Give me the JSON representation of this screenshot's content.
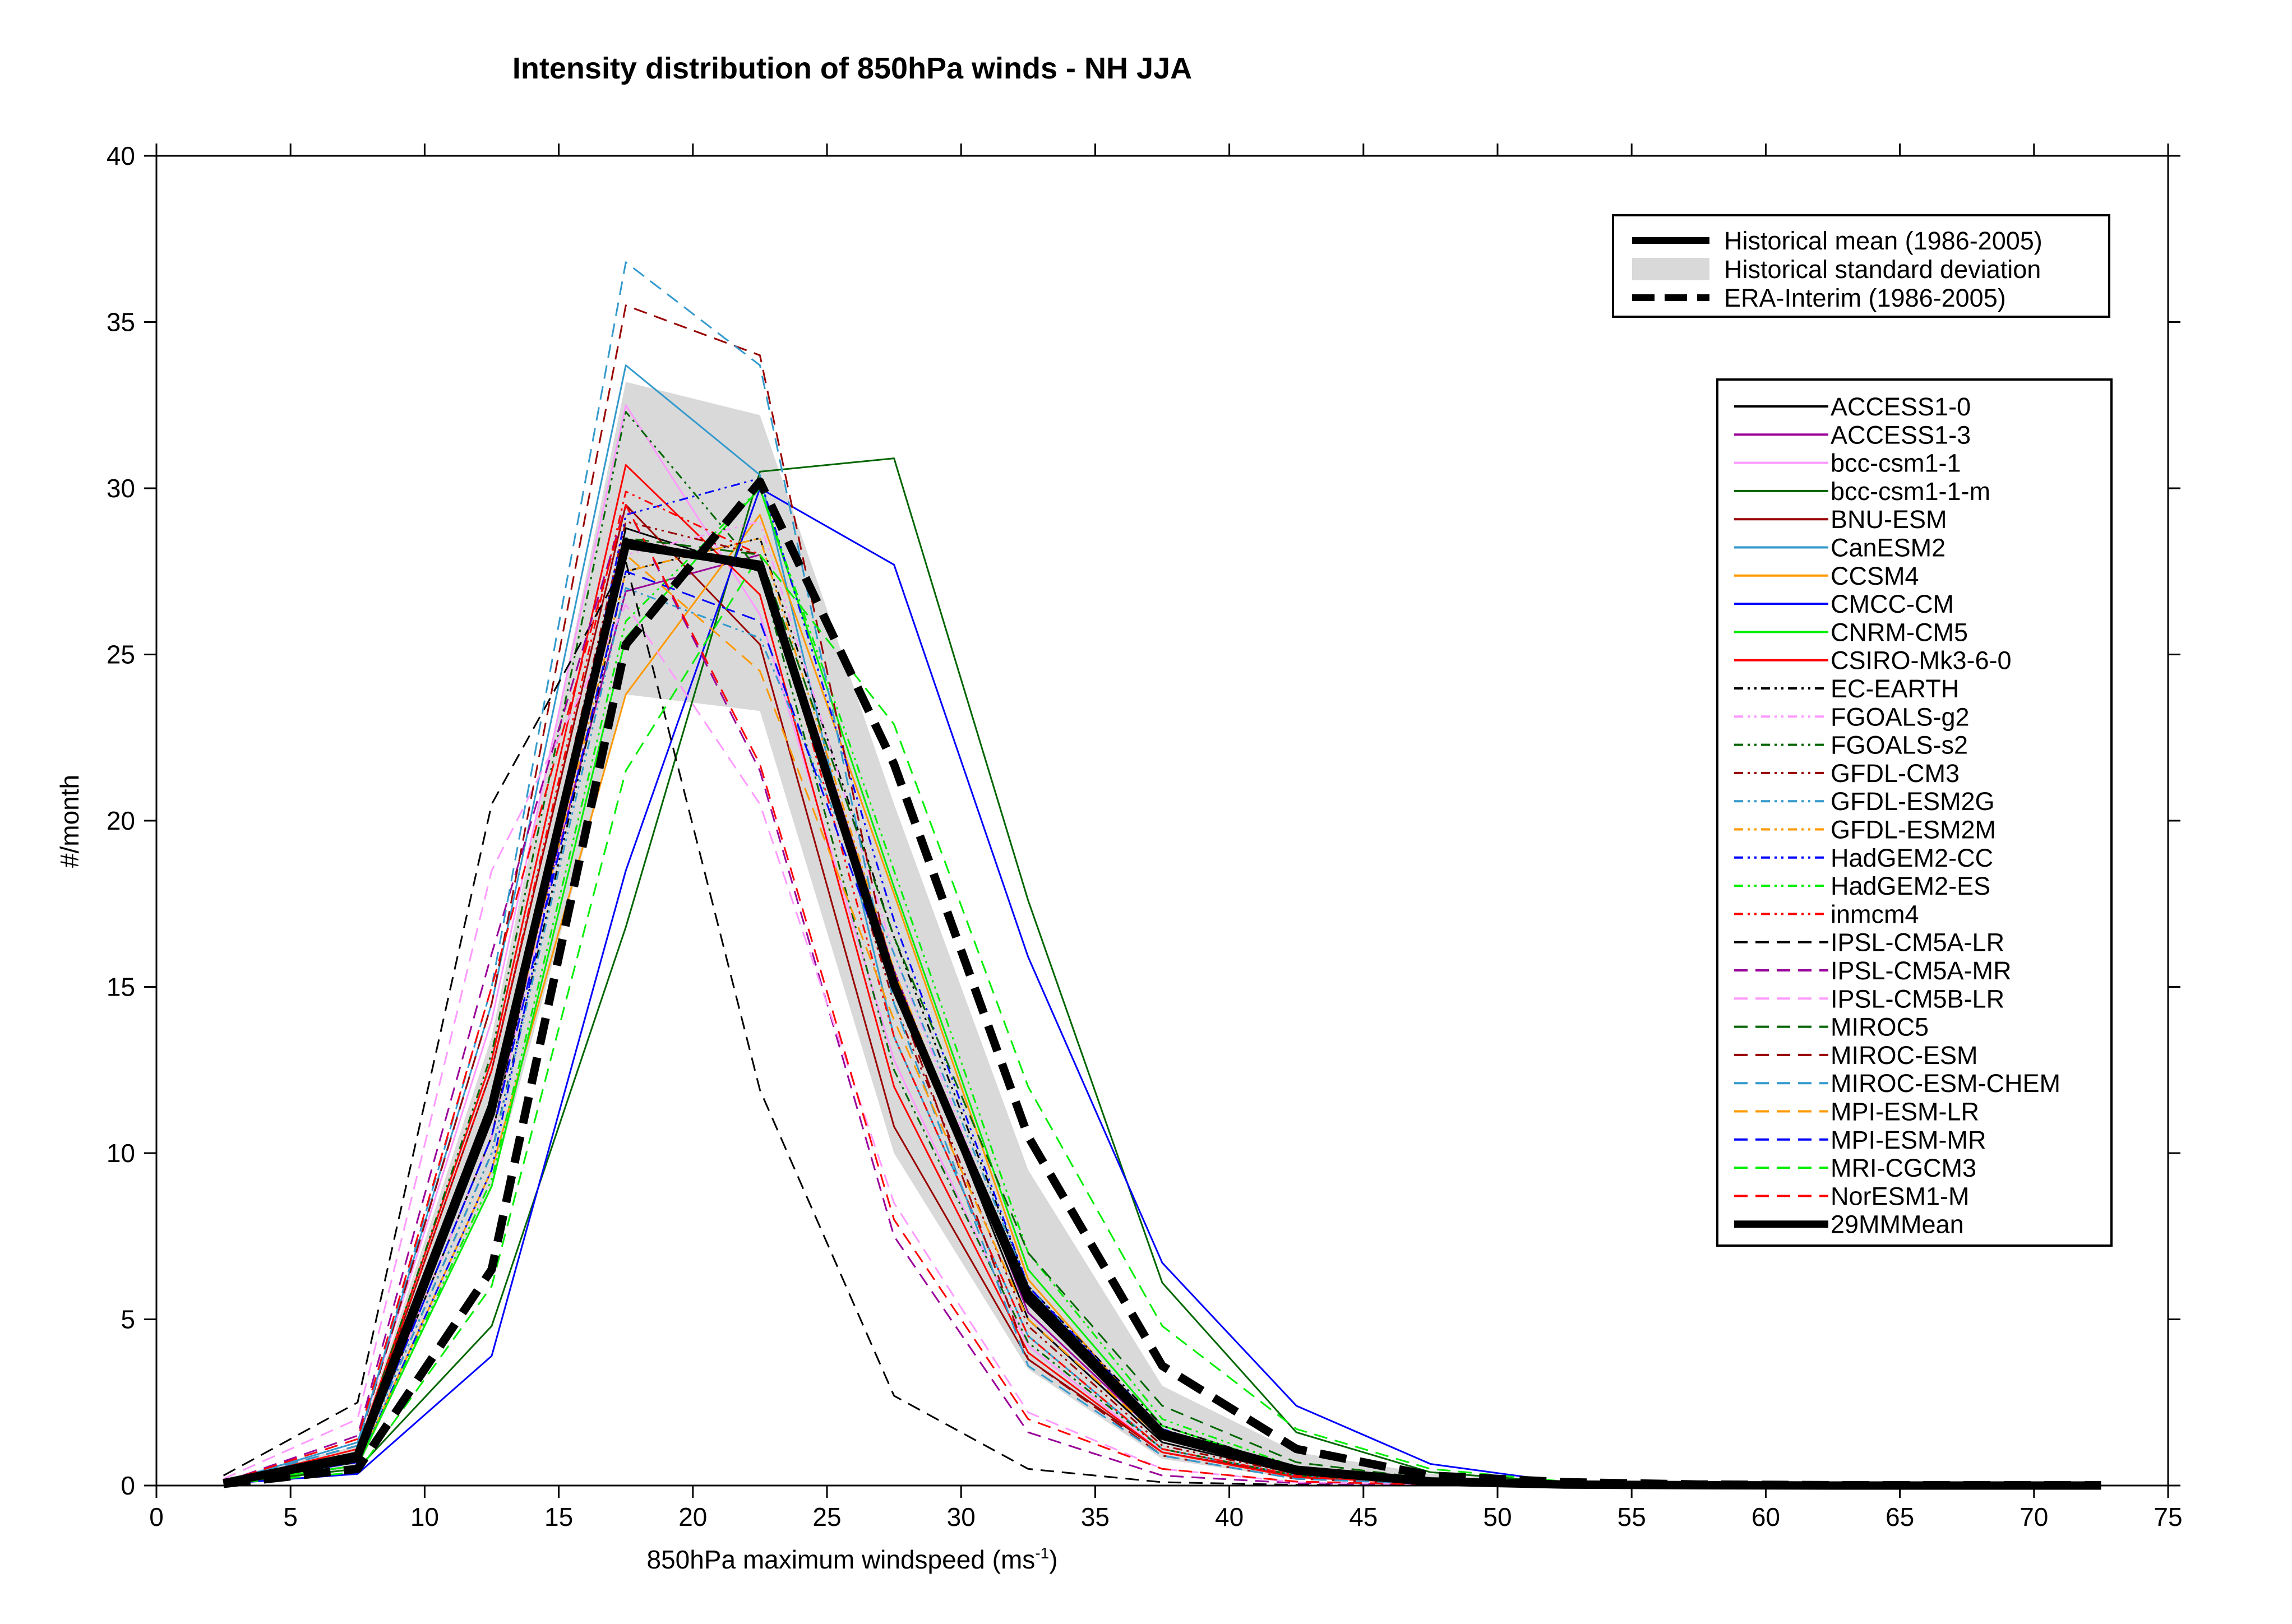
{
  "chart_data": {
    "type": "line",
    "title": "Intensity distribution of 850hPa winds - NH JJA",
    "xlabel_main": "850hPa maximum windspeed (ms",
    "xlabel_sup": "-1",
    "xlabel_end": ")",
    "ylabel": "#/month",
    "xlim": [
      0,
      75
    ],
    "ylim": [
      0,
      40
    ],
    "xticks": [
      0,
      5,
      10,
      15,
      20,
      25,
      30,
      35,
      40,
      45,
      50,
      55,
      60,
      65,
      70,
      75
    ],
    "yticks": [
      0,
      5,
      10,
      15,
      20,
      25,
      30,
      35,
      40
    ],
    "grid": false,
    "x": [
      2.5,
      7.5,
      12.5,
      17.5,
      22.5,
      27.5,
      32.5,
      37.5,
      42.5,
      47.5,
      52.5,
      57.5,
      62.5,
      67.5,
      72.5
    ],
    "reference": {
      "legend_placement": "top-right",
      "historical_mean": {
        "name": "Historical mean (1986-2005)",
        "color": "#000000",
        "values": [
          0.1,
          0.8,
          11.2,
          28.4,
          27.6,
          15.0,
          5.8,
          1.6,
          0.5,
          0.15,
          0.05,
          0.02,
          0.01,
          0.01,
          0.01
        ]
      },
      "historical_std": {
        "name": "Historical standard deviation",
        "color": "#d9d9d9",
        "lower": [
          0.05,
          0.5,
          9.0,
          23.8,
          23.3,
          10.0,
          3.5,
          0.8,
          0.2,
          0.05,
          0.02,
          0.01,
          0.01,
          0.01,
          0.01
        ],
        "upper": [
          0.2,
          1.2,
          13.5,
          33.2,
          32.2,
          20.5,
          9.5,
          3.0,
          1.0,
          0.35,
          0.1,
          0.04,
          0.02,
          0.02,
          0.02
        ]
      },
      "era_interim": {
        "name": "ERA-Interim (1986-2005)",
        "color": "#000000",
        "values": [
          0.05,
          0.5,
          6.5,
          25.3,
          30.2,
          21.7,
          10.5,
          3.6,
          1.1,
          0.3,
          0.1,
          0.03,
          0.01,
          0.01,
          0.01
        ]
      }
    },
    "models_legend_placement": "right",
    "series": [
      {
        "name": "ACCESS1-0",
        "color": "#000000",
        "dash": "solid",
        "values": [
          0.05,
          0.7,
          10.5,
          28.8,
          27.5,
          15.2,
          5.0,
          1.3,
          0.35,
          0.1,
          0.03,
          0.01,
          0.0,
          0.0,
          0.0
        ]
      },
      {
        "name": "ACCESS1-3",
        "color": "#990099",
        "dash": "solid",
        "values": [
          0.05,
          0.8,
          11.5,
          26.9,
          28.0,
          15.5,
          5.2,
          1.4,
          0.4,
          0.1,
          0.03,
          0.01,
          0.0,
          0.0,
          0.0
        ]
      },
      {
        "name": "bcc-csm1-1",
        "color": "#ff99ff",
        "dash": "solid",
        "values": [
          0.1,
          1.3,
          14.0,
          32.5,
          26.2,
          12.8,
          4.2,
          1.0,
          0.3,
          0.08,
          0.02,
          0.01,
          0.0,
          0.0,
          0.0
        ]
      },
      {
        "name": "bcc-csm1-1-m",
        "color": "#006600",
        "dash": "solid",
        "values": [
          0.05,
          0.5,
          4.8,
          16.8,
          30.5,
          30.9,
          17.6,
          6.1,
          1.6,
          0.4,
          0.1,
          0.03,
          0.01,
          0.0,
          0.0
        ]
      },
      {
        "name": "BNU-ESM",
        "color": "#990000",
        "dash": "solid",
        "values": [
          0.1,
          1.0,
          12.5,
          29.5,
          25.3,
          10.8,
          3.8,
          1.0,
          0.3,
          0.08,
          0.02,
          0.01,
          0.0,
          0.0,
          0.0
        ]
      },
      {
        "name": "CanESM2",
        "color": "#3399cc",
        "dash": "solid",
        "values": [
          0.1,
          1.3,
          14.5,
          33.7,
          30.4,
          13.5,
          4.5,
          1.1,
          0.3,
          0.08,
          0.02,
          0.01,
          0.0,
          0.0,
          0.0
        ]
      },
      {
        "name": "CCSM4",
        "color": "#ff9900",
        "dash": "solid",
        "values": [
          0.05,
          0.6,
          9.5,
          23.8,
          29.2,
          17.8,
          6.2,
          1.6,
          0.4,
          0.1,
          0.03,
          0.01,
          0.0,
          0.0,
          0.0
        ]
      },
      {
        "name": "CMCC-CM",
        "color": "#0000ff",
        "dash": "solid",
        "values": [
          0.05,
          0.35,
          3.9,
          18.5,
          30.0,
          27.7,
          15.9,
          6.7,
          2.4,
          0.65,
          0.1,
          0.03,
          0.01,
          0.0,
          0.0
        ]
      },
      {
        "name": "CNRM-CM5",
        "color": "#00ee00",
        "dash": "solid",
        "values": [
          0.05,
          0.6,
          9.0,
          25.5,
          30.0,
          18.0,
          6.5,
          1.8,
          0.5,
          0.12,
          0.03,
          0.01,
          0.0,
          0.0,
          0.0
        ]
      },
      {
        "name": "CSIRO-Mk3-6-0",
        "color": "#ff0000",
        "dash": "solid",
        "values": [
          0.1,
          1.1,
          12.8,
          30.7,
          26.8,
          12.0,
          4.0,
          1.0,
          0.25,
          0.07,
          0.02,
          0.01,
          0.0,
          0.0,
          0.0
        ]
      },
      {
        "name": "EC-EARTH",
        "color": "#000000",
        "dash": "dashdotdot",
        "values": [
          0.05,
          0.7,
          10.0,
          27.5,
          28.5,
          16.5,
          6.0,
          1.8,
          0.5,
          0.12,
          0.03,
          0.01,
          0.0,
          0.0,
          0.0
        ]
      },
      {
        "name": "FGOALS-g2",
        "color": "#ff99ff",
        "dash": "dashdotdot",
        "values": [
          0.05,
          0.7,
          10.5,
          28.0,
          29.0,
          16.0,
          5.5,
          1.5,
          0.4,
          0.1,
          0.03,
          0.01,
          0.0,
          0.0,
          0.0
        ]
      },
      {
        "name": "FGOALS-s2",
        "color": "#006600",
        "dash": "dashdotdot",
        "values": [
          0.1,
          1.0,
          13.0,
          32.3,
          27.5,
          12.5,
          4.3,
          1.1,
          0.3,
          0.08,
          0.02,
          0.01,
          0.0,
          0.0,
          0.0
        ]
      },
      {
        "name": "GFDL-CM3",
        "color": "#990000",
        "dash": "dashdotdot",
        "values": [
          0.05,
          0.8,
          11.5,
          29.0,
          28.0,
          14.5,
          4.8,
          1.2,
          0.35,
          0.1,
          0.03,
          0.01,
          0.0,
          0.0,
          0.0
        ]
      },
      {
        "name": "GFDL-ESM2G",
        "color": "#3399cc",
        "dash": "dashdotdot",
        "values": [
          0.05,
          0.7,
          10.0,
          27.0,
          25.5,
          16.0,
          6.0,
          1.6,
          0.45,
          0.12,
          0.03,
          0.01,
          0.0,
          0.0,
          0.0
        ]
      },
      {
        "name": "GFDL-ESM2M",
        "color": "#ff9900",
        "dash": "dashdotdot",
        "values": [
          0.05,
          0.8,
          11.0,
          27.5,
          28.5,
          15.5,
          5.5,
          1.5,
          0.4,
          0.1,
          0.03,
          0.01,
          0.0,
          0.0,
          0.0
        ]
      },
      {
        "name": "HadGEM2-CC",
        "color": "#0000ff",
        "dash": "dashdotdot",
        "values": [
          0.05,
          0.6,
          9.5,
          29.2,
          30.3,
          17.0,
          6.0,
          1.7,
          0.45,
          0.12,
          0.03,
          0.01,
          0.0,
          0.0,
          0.0
        ]
      },
      {
        "name": "HadGEM2-ES",
        "color": "#00ee00",
        "dash": "dashdotdot",
        "values": [
          0.05,
          0.6,
          9.2,
          26.0,
          30.0,
          18.5,
          7.0,
          2.0,
          0.55,
          0.14,
          0.04,
          0.01,
          0.0,
          0.0,
          0.0
        ]
      },
      {
        "name": "inmcm4",
        "color": "#ff0000",
        "dash": "dashdotdot",
        "values": [
          0.1,
          1.0,
          12.5,
          29.9,
          28.0,
          13.5,
          4.5,
          1.1,
          0.3,
          0.08,
          0.02,
          0.01,
          0.0,
          0.0,
          0.0
        ]
      },
      {
        "name": "IPSL-CM5A-LR",
        "color": "#000000",
        "dash": "dashed",
        "values": [
          0.3,
          2.5,
          20.5,
          27.8,
          11.9,
          2.7,
          0.5,
          0.1,
          0.02,
          0.01,
          0.0,
          0.0,
          0.0,
          0.0,
          0.0
        ]
      },
      {
        "name": "IPSL-CM5A-MR",
        "color": "#990099",
        "dash": "dashed",
        "values": [
          0.1,
          1.5,
          16.0,
          29.5,
          21.5,
          7.5,
          1.6,
          0.3,
          0.07,
          0.02,
          0.0,
          0.0,
          0.0,
          0.0,
          0.0
        ]
      },
      {
        "name": "IPSL-CM5B-LR",
        "color": "#ff99ff",
        "dash": "dashed",
        "values": [
          0.2,
          2.0,
          18.5,
          26.5,
          20.5,
          8.5,
          2.2,
          0.5,
          0.1,
          0.03,
          0.01,
          0.0,
          0.0,
          0.0,
          0.0
        ]
      },
      {
        "name": "MIROC5",
        "color": "#006600",
        "dash": "dashed",
        "values": [
          0.05,
          0.8,
          11.0,
          28.5,
          28.0,
          16.5,
          7.0,
          2.4,
          0.7,
          0.2,
          0.05,
          0.01,
          0.0,
          0.0,
          0.0
        ]
      },
      {
        "name": "MIROC-ESM",
        "color": "#990000",
        "dash": "dashed",
        "values": [
          0.1,
          1.2,
          14.5,
          35.5,
          34.0,
          15.0,
          3.8,
          0.9,
          0.2,
          0.05,
          0.01,
          0.0,
          0.0,
          0.0,
          0.0
        ]
      },
      {
        "name": "MIROC-ESM-CHEM",
        "color": "#3399cc",
        "dash": "dashed",
        "values": [
          0.1,
          1.2,
          15.0,
          36.8,
          33.7,
          14.5,
          3.6,
          0.9,
          0.2,
          0.05,
          0.01,
          0.0,
          0.0,
          0.0,
          0.0
        ]
      },
      {
        "name": "MPI-ESM-LR",
        "color": "#ff9900",
        "dash": "dashed",
        "values": [
          0.05,
          0.8,
          11.0,
          28.0,
          24.5,
          14.0,
          5.0,
          1.4,
          0.4,
          0.1,
          0.03,
          0.01,
          0.0,
          0.0,
          0.0
        ]
      },
      {
        "name": "MPI-ESM-MR",
        "color": "#0000ff",
        "dash": "dashed",
        "values": [
          0.05,
          0.7,
          10.5,
          27.5,
          26.0,
          15.0,
          5.5,
          1.6,
          0.45,
          0.12,
          0.03,
          0.01,
          0.0,
          0.0,
          0.0
        ]
      },
      {
        "name": "MRI-CGCM3",
        "color": "#00ee00",
        "dash": "dashed",
        "values": [
          0.05,
          0.4,
          6.0,
          21.5,
          28.0,
          22.9,
          12.0,
          4.8,
          1.7,
          0.5,
          0.12,
          0.03,
          0.01,
          0.0,
          0.0
        ]
      },
      {
        "name": "NorESM1-M",
        "color": "#ff0000",
        "dash": "dashed",
        "values": [
          0.1,
          1.4,
          15.0,
          29.5,
          21.7,
          8.0,
          2.0,
          0.5,
          0.12,
          0.03,
          0.01,
          0.0,
          0.0,
          0.0,
          0.0
        ]
      },
      {
        "name": "29MMMean",
        "color": "#000000",
        "dash": "thick",
        "values": [
          0.07,
          0.9,
          11.4,
          28.3,
          27.7,
          15.1,
          5.6,
          1.5,
          0.45,
          0.12,
          0.03,
          0.01,
          0.0,
          0.0,
          0.0
        ]
      }
    ]
  }
}
